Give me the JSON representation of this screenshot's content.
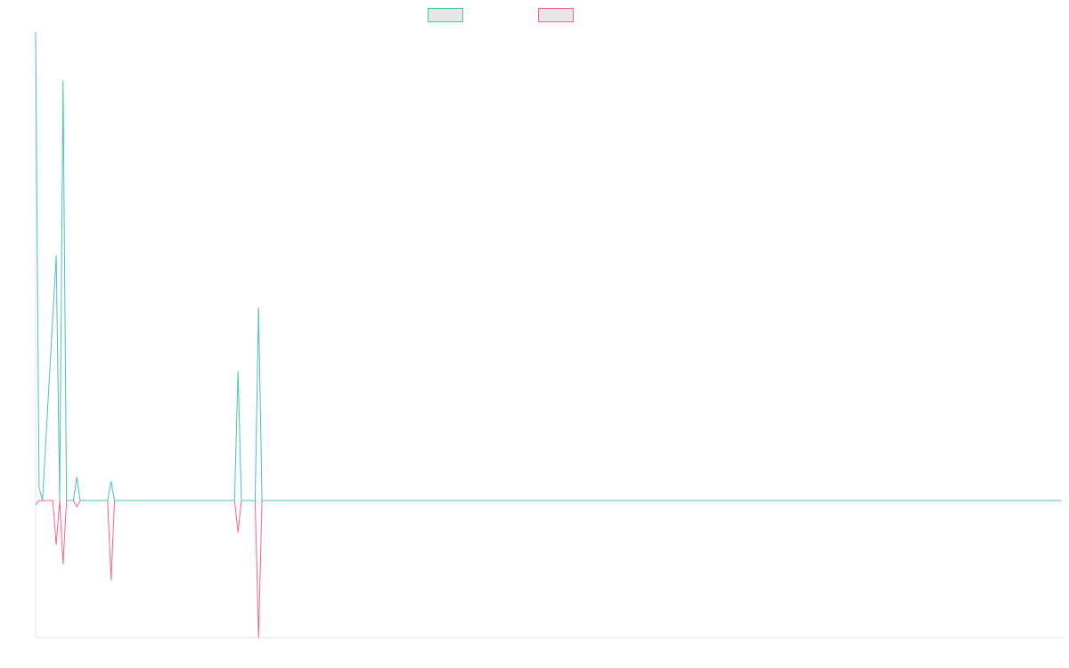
{
  "colors": {
    "positive": "#4bc0c0",
    "negative": "#ff6384",
    "axis": "#e6e6e6",
    "legend_fill": "#e6e6e6"
  },
  "chart_data": {
    "type": "line",
    "legend": {
      "position": "top",
      "items": [
        {
          "name": "",
          "color": "#4bc0c0"
        },
        {
          "name": "",
          "color": "#ff6384"
        }
      ]
    },
    "grid": false,
    "ylim": [
      -155,
      535
    ],
    "x_count": 300,
    "series": [
      {
        "name": "",
        "color": "#4bc0c0",
        "sparse_values": [
          [
            0,
            535
          ],
          [
            1,
            15
          ],
          [
            2,
            0
          ],
          [
            6,
            280
          ],
          [
            7,
            0
          ],
          [
            8,
            480
          ],
          [
            9,
            0
          ],
          [
            11,
            0
          ],
          [
            12,
            27
          ],
          [
            13,
            0
          ],
          [
            21,
            0
          ],
          [
            22,
            22
          ],
          [
            23,
            0
          ],
          [
            58,
            0
          ],
          [
            59,
            148
          ],
          [
            60,
            0
          ],
          [
            64,
            0
          ],
          [
            65,
            220
          ],
          [
            66,
            0
          ]
        ]
      },
      {
        "name": "",
        "color": "#ff6384",
        "sparse_values": [
          [
            0,
            -5
          ],
          [
            1,
            0
          ],
          [
            5,
            0
          ],
          [
            6,
            -50
          ],
          [
            7,
            0
          ],
          [
            8,
            -72
          ],
          [
            9,
            0
          ],
          [
            11,
            0
          ],
          [
            12,
            -7
          ],
          [
            13,
            0
          ],
          [
            21,
            0
          ],
          [
            22,
            -90
          ],
          [
            23,
            0
          ],
          [
            58,
            0
          ],
          [
            59,
            -36
          ],
          [
            60,
            0
          ],
          [
            64,
            0
          ],
          [
            65,
            -155
          ],
          [
            66,
            0
          ]
        ]
      }
    ]
  }
}
